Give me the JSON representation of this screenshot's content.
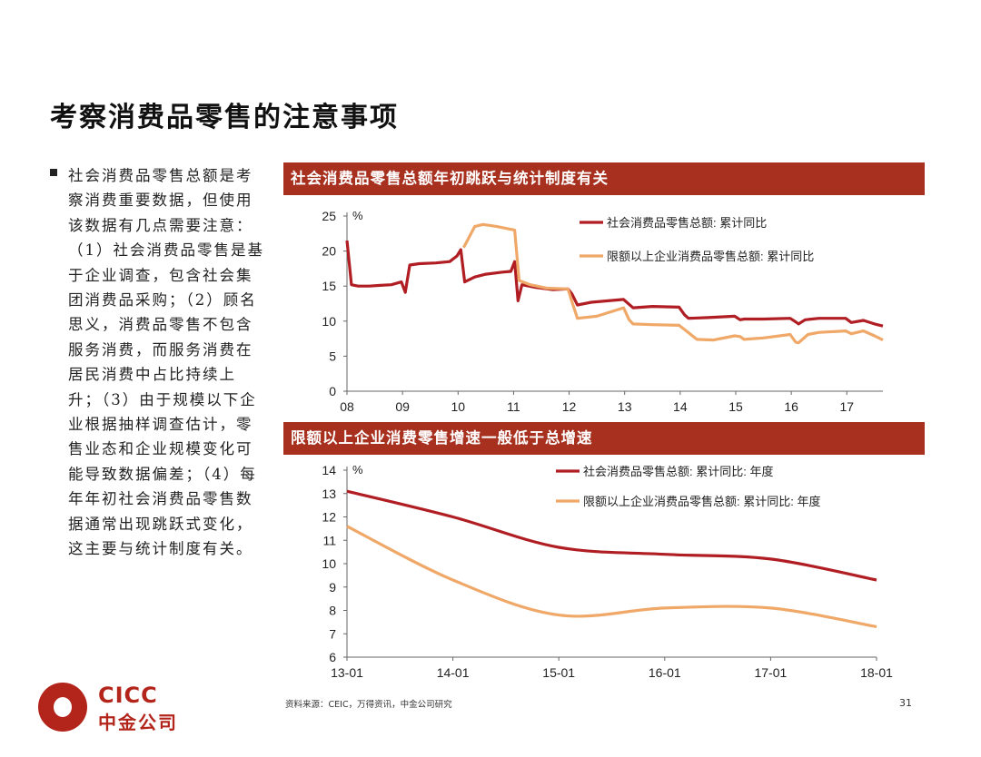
{
  "page": {
    "title": "考察消费品零售的注意事项",
    "bullet": "社会消费品零售总额是考察消费重要数据，但使用该数据有几点需要注意：（1）社会消费品零售是基于企业调查，包含社会集团消费品采购；（2）顾名思义，消费品零售不包含服务消费，而服务消费在居民消费中占比持续上升；（3）由于规模以下企业根据抽样调查估计，零售业态和企业规模变化可能导致数据偏差；（4）每年年初社会消费品零售数据通常出现跳跃式变化，这主要与统计制度有关。",
    "source": "资料来源：CEIC，万得资讯，中金公司研究",
    "page_number": "31"
  },
  "logo": {
    "en": "CICC",
    "cn": "中金公司"
  },
  "colors": {
    "banner": "#a7301f",
    "series_dark": "#b01e23",
    "series_light": "#f0a868"
  },
  "chart_data": [
    {
      "type": "line",
      "title": "社会消费品零售总额年初跳跃与统计制度有关",
      "ylabel": "%",
      "ylim": [
        0,
        25
      ],
      "yticks": [
        "0",
        "5",
        "10",
        "15",
        "20",
        "25"
      ],
      "xticks": [
        "08",
        "09",
        "10",
        "11",
        "12",
        "13",
        "14",
        "15",
        "16",
        "17"
      ],
      "xlim": [
        2008,
        2017.65
      ],
      "legend_position": "top-right",
      "series": [
        {
          "name": "社会消费品零售总额: 累计同比",
          "color": "#b01e23",
          "points": [
            [
              2008.0,
              21.5
            ],
            [
              2008.08,
              15.2
            ],
            [
              2008.2,
              15.0
            ],
            [
              2008.4,
              15.0
            ],
            [
              2008.6,
              15.1
            ],
            [
              2008.8,
              15.2
            ],
            [
              2008.98,
              15.6
            ],
            [
              2009.05,
              14.1
            ],
            [
              2009.13,
              18.0
            ],
            [
              2009.3,
              18.2
            ],
            [
              2009.6,
              18.3
            ],
            [
              2009.85,
              18.5
            ],
            [
              2009.98,
              19.3
            ],
            [
              2010.05,
              20.2
            ],
            [
              2010.12,
              15.6
            ],
            [
              2010.3,
              16.3
            ],
            [
              2010.5,
              16.7
            ],
            [
              2010.8,
              17.0
            ],
            [
              2010.95,
              17.1
            ],
            [
              2011.02,
              18.5
            ],
            [
              2011.08,
              12.9
            ],
            [
              2011.15,
              15.2
            ],
            [
              2011.4,
              14.8
            ],
            [
              2011.7,
              14.5
            ],
            [
              2011.98,
              14.6
            ],
            [
              2012.05,
              13.9
            ],
            [
              2012.15,
              12.3
            ],
            [
              2012.4,
              12.7
            ],
            [
              2012.7,
              12.9
            ],
            [
              2012.98,
              13.1
            ],
            [
              2013.08,
              12.4
            ],
            [
              2013.15,
              11.9
            ],
            [
              2013.5,
              12.1
            ],
            [
              2013.98,
              12.0
            ],
            [
              2014.08,
              10.9
            ],
            [
              2014.15,
              10.4
            ],
            [
              2014.5,
              10.5
            ],
            [
              2014.98,
              10.7
            ],
            [
              2015.08,
              10.2
            ],
            [
              2015.15,
              10.3
            ],
            [
              2015.5,
              10.3
            ],
            [
              2015.98,
              10.4
            ],
            [
              2016.08,
              9.9
            ],
            [
              2016.13,
              9.6
            ],
            [
              2016.25,
              10.2
            ],
            [
              2016.5,
              10.4
            ],
            [
              2016.98,
              10.4
            ],
            [
              2017.08,
              9.8
            ],
            [
              2017.3,
              10.1
            ],
            [
              2017.5,
              9.6
            ],
            [
              2017.65,
              9.3
            ]
          ]
        },
        {
          "name": "限额以上企业消费品零售总额: 累计同比",
          "color": "#f0a868",
          "points": [
            [
              2010.1,
              20.5
            ],
            [
              2010.2,
              22.0
            ],
            [
              2010.3,
              23.5
            ],
            [
              2010.45,
              23.8
            ],
            [
              2010.7,
              23.5
            ],
            [
              2010.95,
              23.1
            ],
            [
              2011.02,
              23.0
            ],
            [
              2011.1,
              15.8
            ],
            [
              2011.3,
              15.2
            ],
            [
              2011.6,
              14.7
            ],
            [
              2011.98,
              14.6
            ],
            [
              2012.05,
              12.8
            ],
            [
              2012.15,
              10.4
            ],
            [
              2012.5,
              10.7
            ],
            [
              2012.98,
              11.9
            ],
            [
              2013.08,
              10.2
            ],
            [
              2013.15,
              9.6
            ],
            [
              2013.5,
              9.5
            ],
            [
              2013.98,
              9.4
            ],
            [
              2014.08,
              8.8
            ],
            [
              2014.3,
              7.4
            ],
            [
              2014.6,
              7.3
            ],
            [
              2014.98,
              7.9
            ],
            [
              2015.08,
              7.8
            ],
            [
              2015.15,
              7.4
            ],
            [
              2015.5,
              7.6
            ],
            [
              2015.98,
              8.1
            ],
            [
              2016.08,
              7.0
            ],
            [
              2016.13,
              6.9
            ],
            [
              2016.3,
              8.1
            ],
            [
              2016.5,
              8.4
            ],
            [
              2016.98,
              8.6
            ],
            [
              2017.08,
              8.2
            ],
            [
              2017.3,
              8.6
            ],
            [
              2017.5,
              7.9
            ],
            [
              2017.65,
              7.3
            ]
          ]
        }
      ]
    },
    {
      "type": "line",
      "title": "限额以上企业消费零售增速一般低于总增速",
      "ylabel": "%",
      "ylim": [
        6,
        14
      ],
      "yticks": [
        "6",
        "7",
        "8",
        "9",
        "10",
        "11",
        "12",
        "13",
        "14"
      ],
      "xticks": [
        "13-01",
        "14-01",
        "15-01",
        "16-01",
        "17-01",
        "18-01"
      ],
      "x": [
        2013,
        2014,
        2015,
        2016,
        2017,
        2018
      ],
      "legend_position": "top-right",
      "series": [
        {
          "name": "社会消费品零售总额: 累计同比: 年度",
          "color": "#b01e23",
          "values": [
            13.1,
            12.0,
            10.7,
            10.4,
            10.2,
            9.3
          ]
        },
        {
          "name": "限额以上企业消费品零售总额: 累计同比: 年度",
          "color": "#f0a868",
          "values": [
            11.6,
            9.3,
            7.8,
            8.1,
            8.1,
            7.3
          ]
        }
      ]
    }
  ]
}
